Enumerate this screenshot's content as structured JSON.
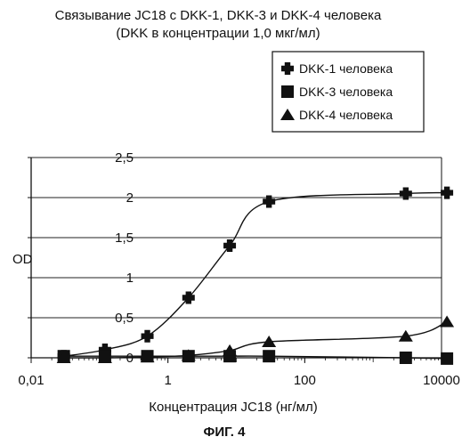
{
  "figure_label": "ФИГ. 4",
  "chart_data": {
    "type": "line",
    "title": "Связывание JC18 с DKK-1, DKK-3 и DKK-4 человека",
    "subtitle": "(DKK в концентрации 1,0 мкг/мл)",
    "xlabel": "Концентрация JC18 (нг/мл)",
    "ylabel": "OD",
    "xscale": "log",
    "xlim": [
      0.01,
      10000
    ],
    "ylim": [
      0,
      2.5
    ],
    "x_tick_values": [
      0.01,
      1,
      100,
      10000
    ],
    "x_tick_labels": [
      "0,01",
      "1",
      "100",
      "10000"
    ],
    "y_tick_values": [
      0,
      0.5,
      1,
      1.5,
      2,
      2.5
    ],
    "y_tick_labels": [
      "0",
      "0,5",
      "1",
      "1,5",
      "2",
      "2,5"
    ],
    "grid": "horizontal",
    "legend_position": "top-right",
    "series": [
      {
        "name": "DKK-1 человека",
        "marker": "plus",
        "color": "#111111",
        "x": [
          0.03,
          0.12,
          0.5,
          2,
          8,
          30,
          3000,
          12000
        ],
        "y": [
          0.02,
          0.1,
          0.27,
          0.75,
          1.4,
          1.95,
          2.05,
          2.06
        ]
      },
      {
        "name": "DKK-3 человека",
        "marker": "square",
        "color": "#111111",
        "x": [
          0.03,
          0.12,
          0.5,
          2,
          8,
          30,
          3000,
          12000
        ],
        "y": [
          0.02,
          0.02,
          0.02,
          0.02,
          0.02,
          0.02,
          0.0,
          -0.01
        ]
      },
      {
        "name": "DKK-4 человека",
        "marker": "triangle",
        "color": "#111111",
        "x": [
          0.03,
          0.12,
          0.5,
          2,
          8,
          30,
          3000,
          12000
        ],
        "y": [
          0.0,
          0.0,
          0.01,
          0.03,
          0.09,
          0.2,
          0.27,
          0.45
        ]
      }
    ]
  }
}
